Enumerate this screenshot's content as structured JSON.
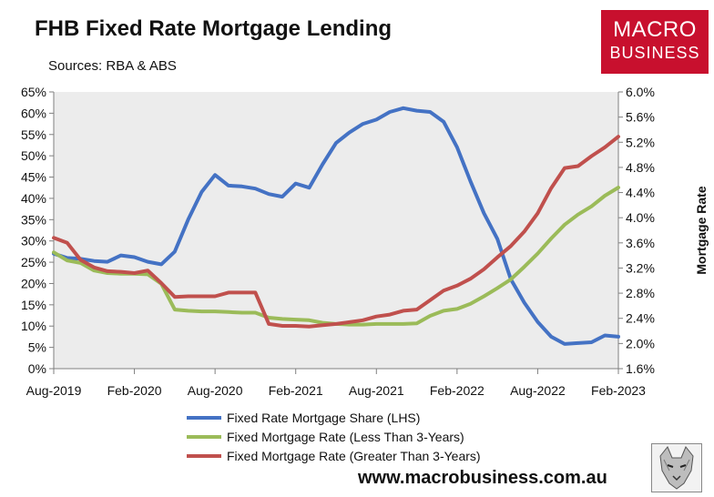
{
  "header": {
    "title": "FHB Fixed Rate Mortgage Lending",
    "sources": "Sources: RBA & ABS"
  },
  "logo": {
    "line1": "MACRO",
    "line2": "BUSINESS",
    "color": "#c8102e"
  },
  "footer": {
    "url": "www.macrobusiness.com.au",
    "icon": "wolf-logo-icon"
  },
  "chart_data": {
    "type": "line",
    "title": "FHB Fixed Rate Mortgage Lending",
    "y_right_label": "Mortgage Rate",
    "grid": false,
    "legend_position": "bottom",
    "x_ticks": [
      "Aug-2019",
      "Feb-2020",
      "Aug-2020",
      "Feb-2021",
      "Aug-2021",
      "Feb-2022",
      "Aug-2022",
      "Feb-2023"
    ],
    "x_range": [
      0,
      42
    ],
    "x_tick_positions": [
      0,
      6,
      12,
      18,
      24,
      30,
      36,
      42
    ],
    "y_left": {
      "range": [
        0,
        65
      ],
      "step": 5,
      "ticks": [
        "0%",
        "5%",
        "10%",
        "15%",
        "20%",
        "25%",
        "30%",
        "35%",
        "40%",
        "45%",
        "50%",
        "55%",
        "60%",
        "65%"
      ]
    },
    "y_right": {
      "range": [
        1.6,
        6.0
      ],
      "step": 0.4,
      "ticks": [
        "1.6%",
        "2.0%",
        "2.4%",
        "2.8%",
        "3.2%",
        "3.6%",
        "4.0%",
        "4.4%",
        "4.8%",
        "5.2%",
        "5.6%",
        "6.0%"
      ]
    },
    "series": [
      {
        "name": "Fixed Rate Mortgage Share (LHS)",
        "axis": "left",
        "color": "#4472c4",
        "values": [
          27.0,
          26.0,
          25.8,
          25.3,
          25.1,
          26.6,
          26.2,
          25.1,
          24.5,
          27.5,
          35.0,
          41.5,
          45.5,
          43.0,
          42.8,
          42.3,
          41.0,
          40.4,
          43.5,
          42.5,
          48.0,
          53.0,
          55.5,
          57.5,
          58.5,
          60.3,
          61.2,
          60.6,
          60.3,
          58.0,
          52.0,
          44.0,
          36.5,
          30.5,
          21.0,
          15.5,
          11.0,
          7.5,
          5.8,
          6.0,
          6.2,
          7.8,
          7.5
        ]
      },
      {
        "name": "Fixed Mortgage Rate (Less Than 3-Years)",
        "axis": "right",
        "color": "#9bbb59",
        "values": [
          3.45,
          3.32,
          3.28,
          3.16,
          3.12,
          3.11,
          3.11,
          3.1,
          2.95,
          2.54,
          2.52,
          2.51,
          2.51,
          2.5,
          2.49,
          2.49,
          2.41,
          2.39,
          2.38,
          2.37,
          2.33,
          2.31,
          2.3,
          2.3,
          2.31,
          2.31,
          2.31,
          2.32,
          2.44,
          2.52,
          2.55,
          2.63,
          2.75,
          2.88,
          3.02,
          3.22,
          3.43,
          3.67,
          3.89,
          4.05,
          4.18,
          4.35,
          4.48
        ]
      },
      {
        "name": "Fixed Mortgage Rate (Greater Than 3-Years)",
        "axis": "right",
        "color": "#c0504d",
        "values": [
          3.68,
          3.6,
          3.33,
          3.21,
          3.15,
          3.14,
          3.12,
          3.16,
          2.96,
          2.74,
          2.75,
          2.75,
          2.75,
          2.81,
          2.81,
          2.81,
          2.31,
          2.28,
          2.28,
          2.27,
          2.29,
          2.31,
          2.34,
          2.37,
          2.43,
          2.46,
          2.52,
          2.54,
          2.69,
          2.84,
          2.92,
          3.03,
          3.18,
          3.37,
          3.55,
          3.78,
          4.07,
          4.47,
          4.79,
          4.82,
          4.98,
          5.12,
          5.29
        ]
      }
    ]
  }
}
